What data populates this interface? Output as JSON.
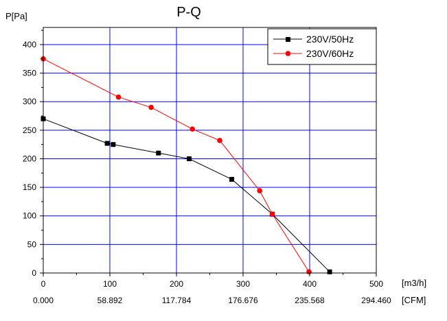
{
  "chart_data": {
    "type": "line",
    "title": "P-Q",
    "ylabel": "P[Pa]",
    "xlabel": "[m3/h]",
    "x2label": "[CFM]",
    "xlim": [
      0,
      500
    ],
    "ylim": [
      0,
      430
    ],
    "x_ticks": [
      0,
      100,
      200,
      300,
      400,
      500
    ],
    "x_tick_labels": [
      "0",
      "100",
      "200",
      "300",
      "400",
      "500"
    ],
    "x2_tick_labels": [
      "0.000",
      "58.892",
      "117.784",
      "176.676",
      "235.568",
      "294.460"
    ],
    "y_ticks": [
      0,
      50,
      100,
      150,
      200,
      250,
      300,
      350,
      400
    ],
    "y_tick_labels": [
      "0",
      "50",
      "100",
      "150",
      "200",
      "250",
      "300",
      "350",
      "400"
    ],
    "grid": true,
    "legend_position": "top-right",
    "series": [
      {
        "name": "230V/50Hz",
        "color": "#000000",
        "marker": "square",
        "x": [
          0,
          96,
          105,
          173,
          219,
          283,
          344,
          430
        ],
        "y": [
          270,
          227,
          225,
          210,
          200,
          164,
          103,
          2
        ]
      },
      {
        "name": "230V/60Hz",
        "color": "#ff0000",
        "marker": "circle",
        "x": [
          0,
          113,
          162,
          224,
          265,
          325,
          344,
          399
        ],
        "y": [
          375,
          308,
          290,
          252,
          232,
          144,
          103,
          2
        ]
      }
    ]
  }
}
